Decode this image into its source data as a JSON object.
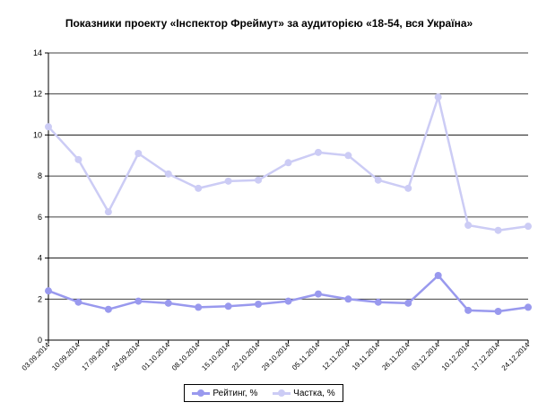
{
  "chart_data": {
    "type": "line",
    "title": "Показники проекту «Інспектор Фреймут» за аудиторією «18-54, вся Україна»",
    "xlabel": "",
    "ylabel": "",
    "ylim": [
      0,
      14
    ],
    "yticks": [
      "0",
      "2",
      "4",
      "6",
      "8",
      "10",
      "12",
      "14"
    ],
    "grid": true,
    "legend_position": "bottom",
    "categories": [
      "03.09.2014",
      "10.09.2014",
      "17.09.2014",
      "24.09.2014",
      "01.10.2014",
      "08.10.2014",
      "15.10.2014",
      "22.10.2014",
      "29.10.2014",
      "05.11.2014",
      "12.11.2014",
      "19.11.2014",
      "26.11.2014",
      "03.12.2014",
      "10.12.2014",
      "17.12.2014",
      "24.12.2014"
    ],
    "series": [
      {
        "name": "Рейтинг, %",
        "color": "#9999ee",
        "values": [
          2.4,
          1.85,
          1.5,
          1.9,
          1.8,
          1.6,
          1.65,
          1.75,
          1.9,
          2.25,
          2.0,
          1.85,
          1.8,
          3.15,
          1.45,
          1.4,
          1.6
        ]
      },
      {
        "name": "Частка, %",
        "color": "#ccccf5",
        "values": [
          10.4,
          8.8,
          6.25,
          9.1,
          8.1,
          7.4,
          7.75,
          7.8,
          8.65,
          9.15,
          9.0,
          7.8,
          7.4,
          11.85,
          5.6,
          5.35,
          5.55
        ]
      }
    ]
  }
}
